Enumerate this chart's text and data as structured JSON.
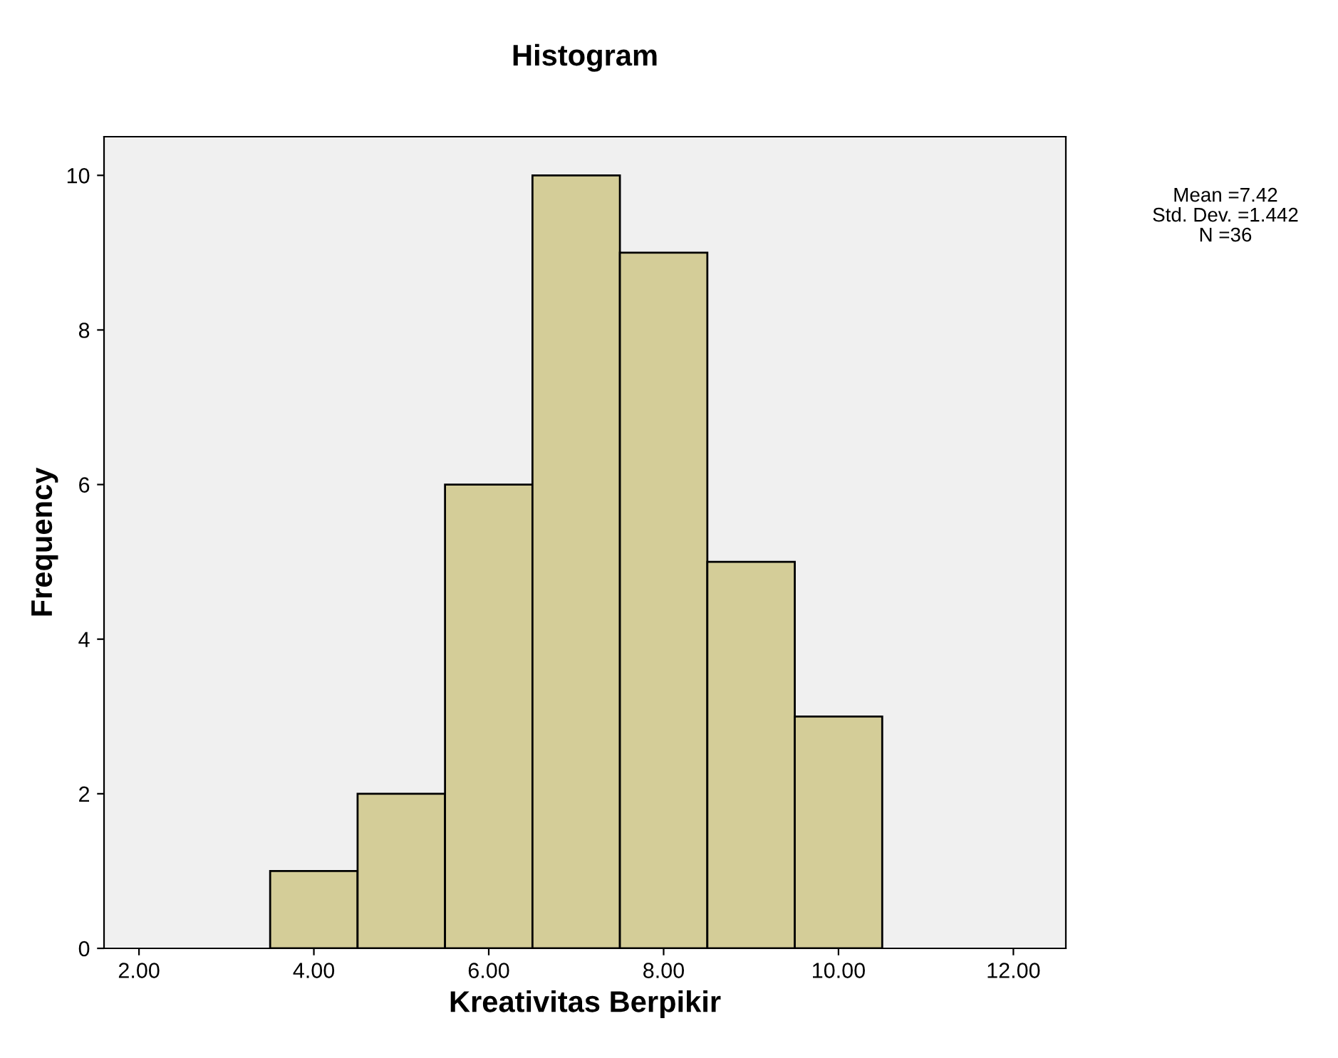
{
  "chart_data": {
    "type": "histogram",
    "title": "Histogram",
    "xlabel": "Kreativitas Berpikir",
    "ylabel": "Frequency",
    "bins": [
      3.5,
      4.5,
      5.5,
      6.5,
      7.5,
      8.5,
      9.5,
      10.5
    ],
    "values": [
      1,
      2,
      6,
      10,
      9,
      5,
      3
    ],
    "color": "#d4cd98",
    "xlim": [
      1.6,
      12.6
    ],
    "ylim": [
      0,
      10.5
    ],
    "xticks": [
      {
        "value": 2,
        "label": "2.00"
      },
      {
        "value": 4,
        "label": "4.00"
      },
      {
        "value": 6,
        "label": "6.00"
      },
      {
        "value": 8,
        "label": "8.00"
      },
      {
        "value": 10,
        "label": "10.00"
      },
      {
        "value": 12,
        "label": "12.00"
      }
    ],
    "yticks": [
      0,
      2,
      4,
      6,
      8,
      10
    ],
    "annotations": [
      "Mean =7.42",
      "Std. Dev. =1.442",
      "N =36"
    ],
    "grid": false,
    "legend": false
  }
}
